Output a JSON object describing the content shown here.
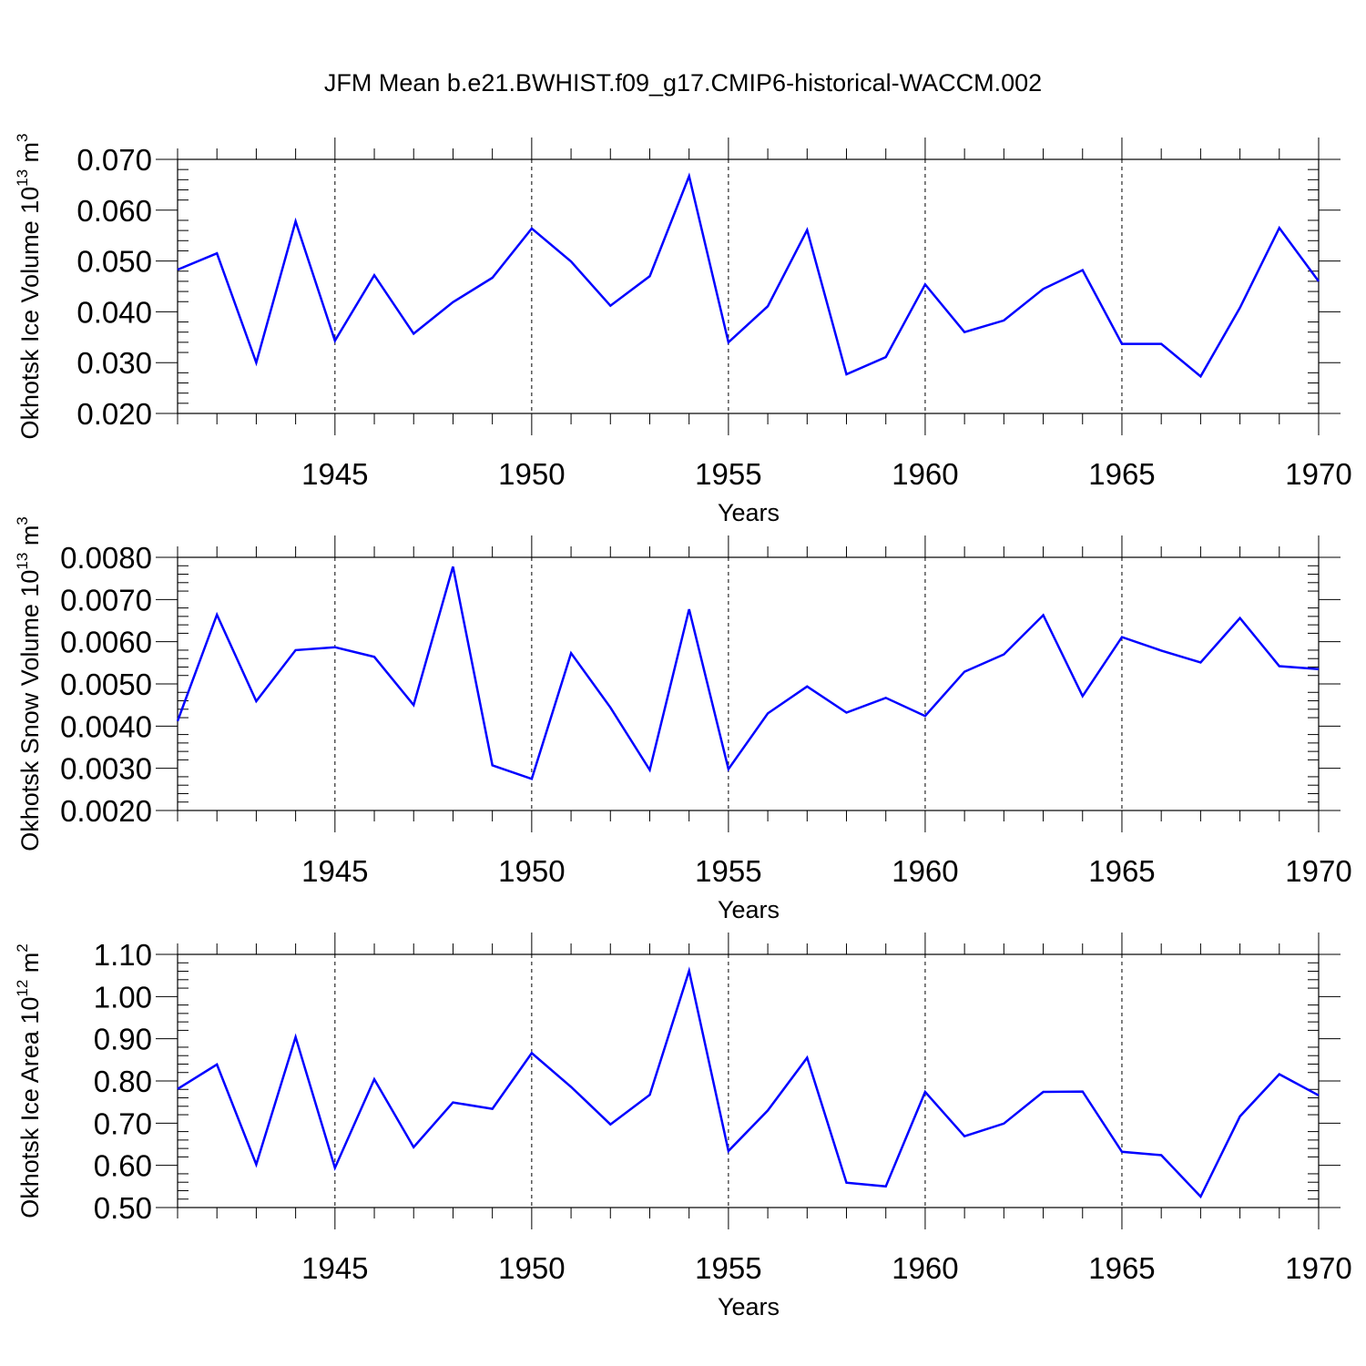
{
  "title": "JFM Mean b.e21.BWHIST.f09_g17.CMIP6-historical-WACCM.002",
  "chart_data": [
    {
      "type": "line",
      "ylabel_main": "Okhotsk Ice Volume 10",
      "ylabel_exp": "13",
      "ylabel_unit": " m",
      "ylabel_unit_exp": "3",
      "xlabel": "Years",
      "xlim": [
        1941,
        1970
      ],
      "ylim": [
        0.02,
        0.07
      ],
      "yticks": [
        0.02,
        0.03,
        0.04,
        0.05,
        0.06,
        0.07
      ],
      "ytick_labels": [
        "0.020",
        "0.030",
        "0.040",
        "0.050",
        "0.060",
        "0.070"
      ],
      "xticks": [
        1945,
        1950,
        1955,
        1960,
        1965,
        1970
      ],
      "xtick_labels": [
        "1945",
        "1950",
        "1955",
        "1960",
        "1965",
        "1970"
      ],
      "x": [
        1941,
        1942,
        1943,
        1944,
        1945,
        1946,
        1947,
        1948,
        1949,
        1950,
        1951,
        1952,
        1953,
        1954,
        1955,
        1956,
        1957,
        1958,
        1959,
        1960,
        1961,
        1962,
        1963,
        1964,
        1965,
        1966,
        1967,
        1968,
        1969,
        1970
      ],
      "series": [
        {
          "name": "Ice Volume",
          "color": "#0000ff",
          "values": [
            0.0483,
            0.0515,
            0.03,
            0.0578,
            0.0343,
            0.0472,
            0.0357,
            0.0419,
            0.0467,
            0.0564,
            0.0499,
            0.0412,
            0.047,
            0.0667,
            0.034,
            0.0411,
            0.0561,
            0.0277,
            0.0311,
            0.0454,
            0.036,
            0.0383,
            0.0445,
            0.0482,
            0.0337,
            0.0337,
            0.0273,
            0.0408,
            0.0565,
            0.046
          ]
        }
      ]
    },
    {
      "type": "line",
      "ylabel_main": "Okhotsk Snow Volume 10",
      "ylabel_exp": "13",
      "ylabel_unit": " m",
      "ylabel_unit_exp": "3",
      "xlabel": "Years",
      "xlim": [
        1941,
        1970
      ],
      "ylim": [
        0.002,
        0.008
      ],
      "yticks": [
        0.002,
        0.003,
        0.004,
        0.005,
        0.006,
        0.007,
        0.008
      ],
      "ytick_labels": [
        "0.0020",
        "0.0030",
        "0.0040",
        "0.0050",
        "0.0060",
        "0.0070",
        "0.0080"
      ],
      "xticks": [
        1945,
        1950,
        1955,
        1960,
        1965,
        1970
      ],
      "xtick_labels": [
        "1945",
        "1950",
        "1955",
        "1960",
        "1965",
        "1970"
      ],
      "x": [
        1941,
        1942,
        1943,
        1944,
        1945,
        1946,
        1947,
        1948,
        1949,
        1950,
        1951,
        1952,
        1953,
        1954,
        1955,
        1956,
        1957,
        1958,
        1959,
        1960,
        1961,
        1962,
        1963,
        1964,
        1965,
        1966,
        1967,
        1968,
        1969,
        1970
      ],
      "series": [
        {
          "name": "Snow Volume",
          "color": "#0000ff",
          "values": [
            0.00412,
            0.00664,
            0.00459,
            0.0058,
            0.00587,
            0.00564,
            0.0045,
            0.00778,
            0.00307,
            0.00275,
            0.00573,
            0.00444,
            0.00296,
            0.00677,
            0.00298,
            0.0043,
            0.00494,
            0.00432,
            0.00467,
            0.00424,
            0.00529,
            0.0057,
            0.00663,
            0.00471,
            0.00611,
            0.00579,
            0.00551,
            0.00656,
            0.00542,
            0.00535
          ]
        }
      ]
    },
    {
      "type": "line",
      "ylabel_main": "Okhotsk Ice Area 10",
      "ylabel_exp": "12",
      "ylabel_unit": " m",
      "ylabel_unit_exp": "2",
      "xlabel": "Years",
      "xlim": [
        1941,
        1970
      ],
      "ylim": [
        0.5,
        1.1
      ],
      "yticks": [
        0.5,
        0.6,
        0.7,
        0.8,
        0.9,
        1.0,
        1.1
      ],
      "ytick_labels": [
        "0.50",
        "0.60",
        "0.70",
        "0.80",
        "0.90",
        "1.00",
        "1.10"
      ],
      "xticks": [
        1945,
        1950,
        1955,
        1960,
        1965,
        1970
      ],
      "xtick_labels": [
        "1945",
        "1950",
        "1955",
        "1960",
        "1965",
        "1970"
      ],
      "x": [
        1941,
        1942,
        1943,
        1944,
        1945,
        1946,
        1947,
        1948,
        1949,
        1950,
        1951,
        1952,
        1953,
        1954,
        1955,
        1956,
        1957,
        1958,
        1959,
        1960,
        1961,
        1962,
        1963,
        1964,
        1965,
        1966,
        1967,
        1968,
        1969,
        1970
      ],
      "series": [
        {
          "name": "Ice Area",
          "color": "#0000ff",
          "values": [
            0.781,
            0.839,
            0.602,
            0.904,
            0.594,
            0.804,
            0.643,
            0.749,
            0.734,
            0.866,
            0.786,
            0.697,
            0.767,
            1.061,
            0.634,
            0.73,
            0.855,
            0.559,
            0.55,
            0.774,
            0.669,
            0.699,
            0.774,
            0.775,
            0.632,
            0.624,
            0.526,
            0.716,
            0.816,
            0.766
          ]
        }
      ]
    }
  ]
}
